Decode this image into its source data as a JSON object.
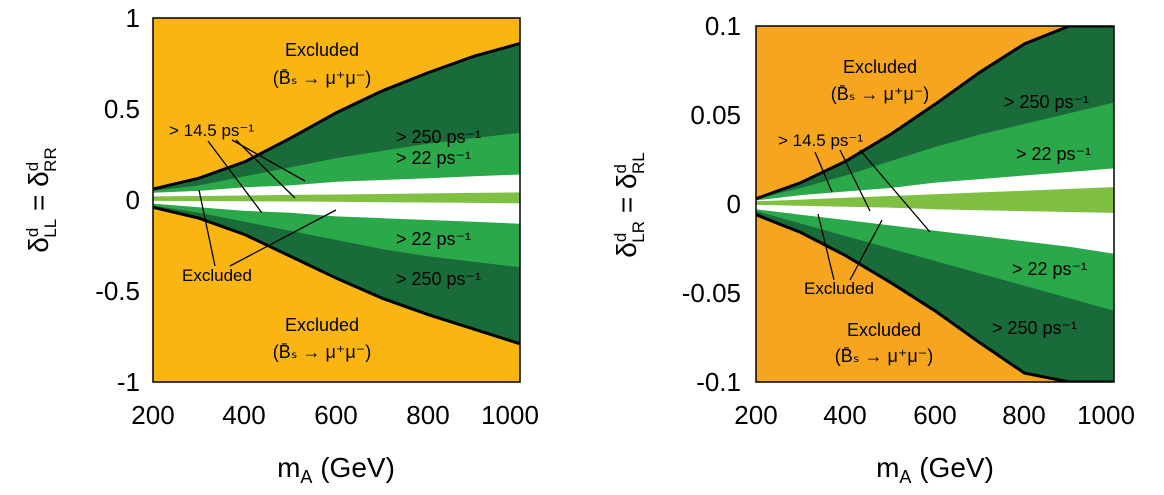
{
  "chart_data": [
    {
      "type": "area",
      "panel": "left",
      "xlabel": "m_A (GeV)",
      "ylabel": "δ^d_LL = δ^d_RR",
      "xlim": [
        200,
        1000
      ],
      "ylim": [
        -1,
        1
      ],
      "xticks": [
        "200",
        "400",
        "600",
        "800",
        "1000"
      ],
      "yticks": [
        "1",
        "0.5",
        "0",
        "-0.5",
        "-1"
      ],
      "x": [
        200,
        300,
        400,
        500,
        600,
        700,
        800,
        900,
        1000
      ],
      "boundaries": {
        "excluded_upper": [
          0.06,
          0.12,
          0.21,
          0.34,
          0.48,
          0.6,
          0.7,
          0.79,
          0.86
        ],
        "dm_250_upper": [
          0.05,
          0.08,
          0.13,
          0.18,
          0.23,
          0.27,
          0.31,
          0.34,
          0.37
        ],
        "dm_22_upper": [
          0.04,
          0.05,
          0.07,
          0.08,
          0.1,
          0.11,
          0.12,
          0.13,
          0.14
        ],
        "green_band_upper": [
          0.02,
          0.022,
          0.025,
          0.028,
          0.03,
          0.033,
          0.036,
          0.039,
          0.042
        ],
        "green_band_lower": [
          -0.005,
          -0.006,
          -0.007,
          -0.008,
          -0.01,
          -0.012,
          -0.014,
          -0.016,
          -0.018
        ],
        "dm_22_lower": [
          -0.02,
          -0.04,
          -0.06,
          -0.07,
          -0.09,
          -0.1,
          -0.11,
          -0.12,
          -0.13
        ],
        "dm_250_lower": [
          -0.03,
          -0.07,
          -0.12,
          -0.17,
          -0.22,
          -0.27,
          -0.31,
          -0.34,
          -0.37
        ],
        "excluded_lower": [
          -0.04,
          -0.1,
          -0.19,
          -0.31,
          -0.43,
          -0.54,
          -0.63,
          -0.71,
          -0.79
        ]
      },
      "annotations": {
        "excluded_top": "Excluded",
        "decay_top": "(B̄ₛ → μ⁺μ⁻)",
        "dm_250_upper": "> 250 ps⁻¹",
        "dm_22_upper": "> 22 ps⁻¹",
        "dm_145": "> 14.5 ps⁻¹",
        "dm_22_lower": "> 22 ps⁻¹",
        "dm_250_lower": "> 250 ps⁻¹",
        "excluded_mid": "Excluded",
        "excluded_bottom": "Excluded",
        "decay_bottom": "(B̄ₛ → μ⁺μ⁻)"
      }
    },
    {
      "type": "area",
      "panel": "right",
      "xlabel": "m_A (GeV)",
      "ylabel": "δ^d_LR = δ^d_RL",
      "xlim": [
        200,
        1000
      ],
      "ylim": [
        -0.1,
        0.1
      ],
      "xticks": [
        "200",
        "400",
        "600",
        "800",
        "1000"
      ],
      "yticks": [
        "0.1",
        "0.05",
        "0",
        "-0.05",
        "-0.1"
      ],
      "x": [
        200,
        300,
        400,
        500,
        600,
        700,
        800,
        900,
        1000
      ],
      "boundaries": {
        "excluded_upper": [
          0.003,
          0.012,
          0.024,
          0.039,
          0.056,
          0.074,
          0.09,
          0.1,
          0.1
        ],
        "dm_250_upper": [
          0.003,
          0.009,
          0.016,
          0.024,
          0.032,
          0.039,
          0.045,
          0.051,
          0.057
        ],
        "dm_22_upper": [
          0.002,
          0.005,
          0.007,
          0.009,
          0.012,
          0.014,
          0.016,
          0.018,
          0.02
        ],
        "green_band_upper": [
          0.0015,
          0.0025,
          0.0035,
          0.0045,
          0.0055,
          0.0065,
          0.0075,
          0.0085,
          0.0095
        ],
        "green_band_lower": [
          -0.0005,
          -0.001,
          -0.0015,
          -0.002,
          -0.003,
          -0.0035,
          -0.004,
          -0.0045,
          -0.005
        ],
        "dm_22_lower": [
          -0.003,
          -0.006,
          -0.009,
          -0.012,
          -0.015,
          -0.018,
          -0.021,
          -0.024,
          -0.028
        ],
        "dm_250_lower": [
          -0.004,
          -0.011,
          -0.018,
          -0.025,
          -0.032,
          -0.039,
          -0.046,
          -0.053,
          -0.06
        ],
        "excluded_lower": [
          -0.006,
          -0.016,
          -0.029,
          -0.044,
          -0.06,
          -0.078,
          -0.095,
          -0.1,
          -0.1
        ]
      },
      "annotations": {
        "excluded_top": "Excluded",
        "decay_top": "(B̄ₛ → μ⁺μ⁻)",
        "dm_250_upper": "> 250 ps⁻¹",
        "dm_22_upper": "> 22 ps⁻¹",
        "dm_145": "> 14.5 ps⁻¹",
        "dm_22_lower": "> 22 ps⁻¹",
        "dm_250_lower": "> 250 ps⁻¹",
        "excluded_mid": "Excluded",
        "excluded_bottom": "Excluded",
        "decay_bottom": "(B̄ₛ → μ⁺μ⁻)"
      }
    }
  ],
  "colors": {
    "excluded": "#fbb512",
    "excluded_right": "#f7a51f",
    "dm_250": "#196b3a",
    "dm_22": "#2aa84a",
    "dm_145_band": "#7fc043",
    "allowed": "#ffffff",
    "line": "#000000"
  }
}
